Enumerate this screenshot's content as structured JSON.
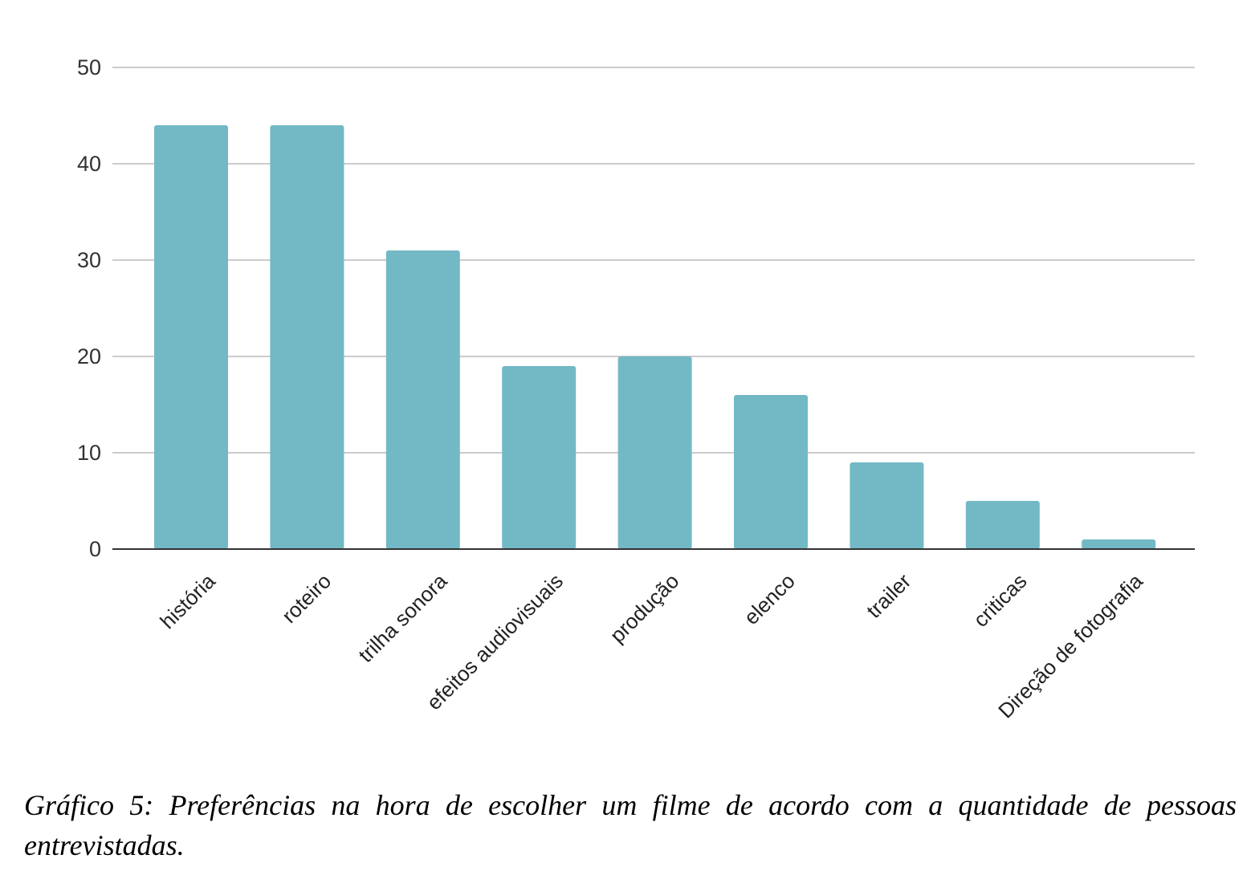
{
  "chart_data": {
    "type": "bar",
    "categories": [
      "história",
      "roteiro",
      "trilha sonora",
      "efeitos audiovisuais",
      "produção",
      "elenco",
      "trailer",
      "criticas",
      "Direção de fotografia"
    ],
    "values": [
      44,
      44,
      31,
      19,
      20,
      16,
      9,
      5,
      1
    ],
    "title": "",
    "xlabel": "",
    "ylabel": "",
    "ylim": [
      0,
      50
    ],
    "yticks": [
      0,
      10,
      20,
      30,
      40,
      50
    ],
    "grid": true,
    "legend": "none",
    "colors": {
      "bar": "#72b9c5",
      "grid": "#cccccc",
      "axis": "#333333"
    }
  },
  "caption": "Gráfico 5: Preferências na hora de escolher um filme de acordo com a quantidade de pessoas entrevistadas."
}
